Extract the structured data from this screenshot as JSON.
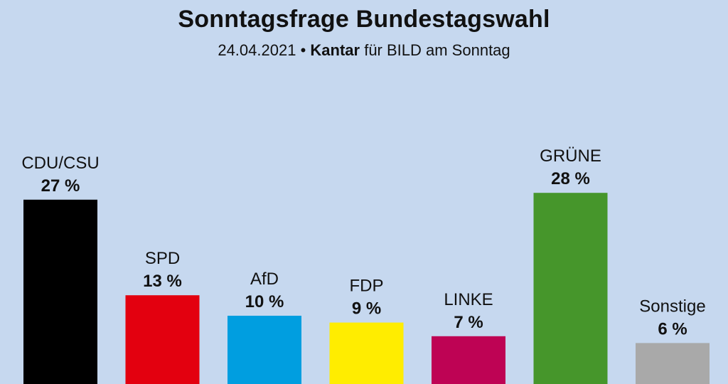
{
  "header": {
    "title": "Sonntagsfrage Bundestagswahl",
    "date": "24.04.2021",
    "separator": "•",
    "institute": "Kantar",
    "client": "für BILD am Sonntag"
  },
  "chart_data": {
    "type": "bar",
    "title": "Sonntagsfrage Bundestagswahl",
    "subtitle": "24.04.2021 • Kantar für BILD am Sonntag",
    "categories": [
      "CDU/CSU",
      "SPD",
      "AfD",
      "FDP",
      "LINKE",
      "GRÜNE",
      "Sonstige"
    ],
    "values": [
      27,
      13,
      10,
      9,
      7,
      28,
      6
    ],
    "value_labels": [
      "27 %",
      "13 %",
      "10 %",
      "9 %",
      "7 %",
      "28 %",
      "6 %"
    ],
    "colors": [
      "#000000",
      "#e3000f",
      "#009ee0",
      "#ffed00",
      "#be0354",
      "#46962b",
      "#a9a9a9"
    ],
    "unit": "%",
    "ylim": [
      0,
      28
    ],
    "grid": false,
    "legend": "none"
  }
}
